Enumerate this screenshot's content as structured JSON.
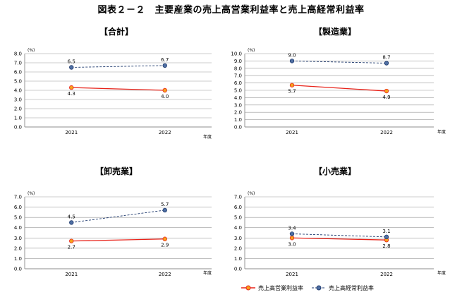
{
  "figure_title": "図表２－２　主要産業の売上高営業利益率と売上高経常利益率",
  "legend": [
    {
      "label": "売上高営業利益率",
      "color": "#e8231a",
      "marker_fill": "#f7a21b",
      "dashed": false
    },
    {
      "label": "売上高経常利益率",
      "color": "#1f3a6e",
      "marker_fill": "#4f6fa3",
      "dashed": true
    }
  ],
  "chart_data": [
    {
      "type": "line",
      "title": "【合計】",
      "ylabel": "(%)",
      "xlabel": "年度",
      "categories": [
        "2021",
        "2022"
      ],
      "ylim": [
        0,
        8
      ],
      "ystep": 1,
      "grid": true,
      "series": [
        {
          "name": "売上高営業利益率",
          "values": [
            4.3,
            4.0
          ]
        },
        {
          "name": "売上高経常利益率",
          "values": [
            6.5,
            6.7
          ]
        }
      ]
    },
    {
      "type": "line",
      "title": "【製造業】",
      "ylabel": "(%)",
      "xlabel": "年度",
      "categories": [
        "2021",
        "2022"
      ],
      "ylim": [
        0,
        10
      ],
      "ystep": 1,
      "grid": true,
      "series": [
        {
          "name": "売上高営業利益率",
          "values": [
            5.7,
            4.9
          ]
        },
        {
          "name": "売上高経常利益率",
          "values": [
            9.0,
            8.7
          ]
        }
      ]
    },
    {
      "type": "line",
      "title": "【卸売業】",
      "ylabel": "(%)",
      "xlabel": "年度",
      "categories": [
        "2021",
        "2022"
      ],
      "ylim": [
        0,
        7
      ],
      "ystep": 1,
      "grid": true,
      "series": [
        {
          "name": "売上高営業利益率",
          "values": [
            2.7,
            2.9
          ]
        },
        {
          "name": "売上高経常利益率",
          "values": [
            4.5,
            5.7
          ]
        }
      ]
    },
    {
      "type": "line",
      "title": "【小売業】",
      "ylabel": "(%)",
      "xlabel": "年度",
      "categories": [
        "2021",
        "2022"
      ],
      "ylim": [
        0,
        7
      ],
      "ystep": 1,
      "grid": true,
      "series": [
        {
          "name": "売上高営業利益率",
          "values": [
            3.0,
            2.8
          ]
        },
        {
          "name": "売上高経常利益率",
          "values": [
            3.4,
            3.1
          ]
        }
      ]
    }
  ]
}
